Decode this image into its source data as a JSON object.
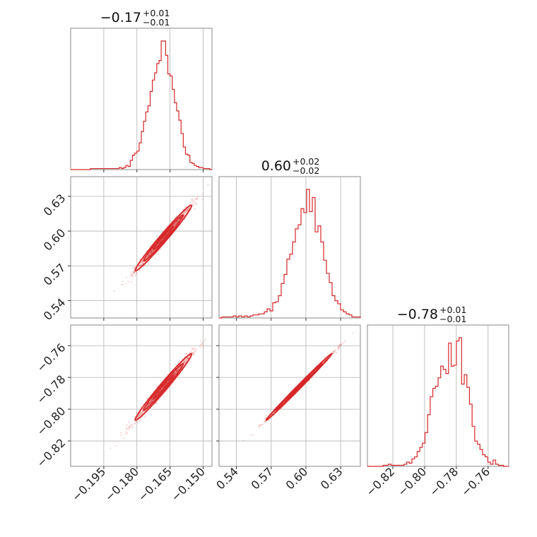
{
  "chart_data": {
    "type": "corner",
    "color": "#d62728",
    "grid": true,
    "parameters": [
      {
        "title_value": "−0.17",
        "title_plus": "+0.01",
        "title_minus": "−0.01",
        "range": [
          -0.21,
          -0.146
        ],
        "ticks": [
          -0.195,
          -0.18,
          -0.165,
          -0.15
        ],
        "tick_labels": [
          "−0.195",
          "−0.180",
          "−0.165",
          "−0.150"
        ]
      },
      {
        "title_value": "0.60",
        "title_plus": "+0.02",
        "title_minus": "−0.02",
        "range": [
          0.525,
          0.647
        ],
        "ticks": [
          0.54,
          0.57,
          0.6,
          0.63
        ],
        "tick_labels": [
          "0.54",
          "0.57",
          "0.60",
          "0.63"
        ]
      },
      {
        "title_value": "−0.78",
        "title_plus": "+0.01",
        "title_minus": "−0.01",
        "range": [
          -0.836,
          -0.747
        ],
        "ticks": [
          -0.82,
          -0.8,
          -0.78,
          -0.76
        ],
        "tick_labels": [
          "−0.82",
          "−0.80",
          "−0.78",
          "−0.76"
        ]
      }
    ],
    "marginals": [
      {
        "param": 0,
        "range": [
          -0.21,
          -0.146
        ],
        "counts": [
          0,
          0,
          0,
          0,
          0,
          0,
          0,
          0,
          0,
          1,
          1,
          1,
          1,
          1,
          1,
          1,
          1,
          1,
          1,
          1,
          1,
          1,
          2,
          1,
          2,
          4,
          3,
          9,
          14,
          16,
          18,
          26,
          37,
          47,
          56,
          62,
          76,
          87,
          94,
          103,
          106,
          125,
          125,
          111,
          93,
          91,
          78,
          65,
          57,
          48,
          35,
          22,
          15,
          14,
          7,
          6,
          4,
          3,
          2,
          2,
          1,
          1,
          1,
          0
        ]
      },
      {
        "param": 1,
        "range": [
          0.525,
          0.647
        ],
        "counts": [
          0,
          1,
          1,
          1,
          1,
          2,
          1,
          2,
          1,
          2,
          1,
          2,
          3,
          3,
          4,
          4,
          6,
          9,
          7,
          15,
          16,
          22,
          34,
          43,
          58,
          63,
          75,
          88,
          92,
          108,
          104,
          127,
          105,
          119,
          85,
          91,
          75,
          57,
          44,
          35,
          22,
          17,
          14,
          8,
          6,
          4,
          3,
          1,
          1,
          1
        ]
      },
      {
        "param": 2,
        "range": [
          -0.836,
          -0.747
        ],
        "counts": [
          0,
          0,
          0,
          0,
          0,
          0,
          1,
          1,
          2,
          1,
          1,
          1,
          1,
          1,
          2,
          4,
          3,
          7,
          9,
          14,
          18,
          22,
          32,
          49,
          66,
          74,
          76,
          84,
          95,
          92,
          88,
          117,
          95,
          96,
          119,
          122,
          78,
          87,
          75,
          59,
          38,
          24,
          21,
          16,
          11,
          9,
          4,
          2,
          6,
          2,
          1,
          1,
          0,
          0
        ]
      }
    ],
    "pairs": [
      {
        "x_param": 0,
        "y_param": 1,
        "n_points": 900,
        "mean": [
          -0.168,
          0.594
        ],
        "sd": [
          0.0064,
          0.0142
        ],
        "corr": 0.985
      },
      {
        "x_param": 0,
        "y_param": 2,
        "n_points": 900,
        "mean": [
          -0.168,
          -0.786
        ],
        "sd": [
          0.0064,
          0.0105
        ],
        "corr": 0.985
      },
      {
        "x_param": 1,
        "y_param": 2,
        "n_points": 900,
        "mean": [
          0.594,
          -0.786
        ],
        "sd": [
          0.0142,
          0.0105
        ],
        "corr": 0.997
      }
    ]
  }
}
